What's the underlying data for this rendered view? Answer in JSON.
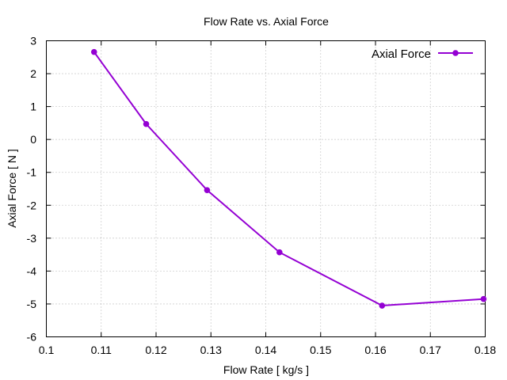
{
  "chart_data": {
    "type": "line",
    "title": "Flow Rate vs. Axial Force",
    "xlabel": "Flow Rate [ kg/s ]",
    "ylabel": "Axial Force [ N ]",
    "xlim": [
      0.1,
      0.18
    ],
    "ylim": [
      -6,
      3
    ],
    "xticks": [
      "0.1",
      "0.11",
      "0.12",
      "0.13",
      "0.14",
      "0.15",
      "0.16",
      "0.17",
      "0.18"
    ],
    "yticks": [
      "-6",
      "-5",
      "-4",
      "-3",
      "-2",
      "-1",
      "0",
      "1",
      "2",
      "3"
    ],
    "grid": true,
    "legend_position": "top-right",
    "series": [
      {
        "name": "Axial Force",
        "color": "#9400d3",
        "x": [
          0.1087,
          0.1182,
          0.1293,
          0.1425,
          0.1612,
          0.1797
        ],
        "y": [
          2.66,
          0.47,
          -1.54,
          -3.43,
          -5.05,
          -4.85
        ]
      }
    ]
  }
}
